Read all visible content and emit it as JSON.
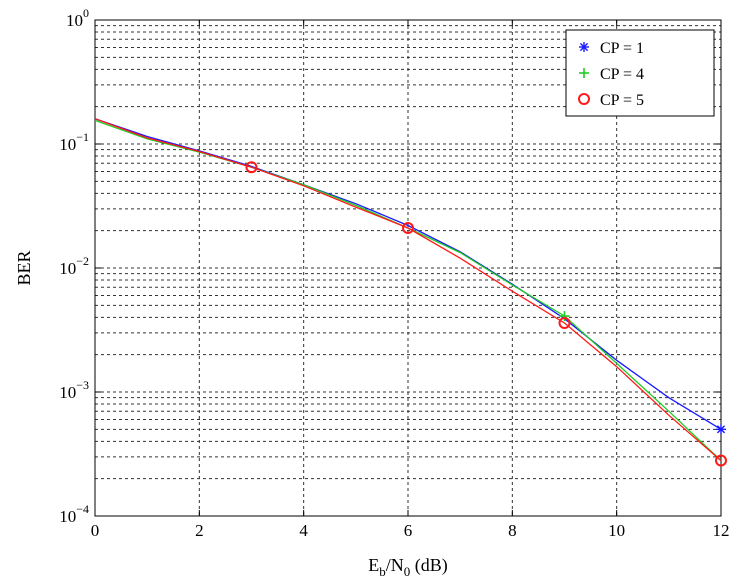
{
  "chart_data": {
    "type": "line",
    "title": "",
    "xlabel": {
      "main": "E",
      "sub1": "b",
      "mid": "/N",
      "sub2": "0",
      "tail": " (dB)"
    },
    "ylabel": "BER",
    "x_ticks": [
      0,
      2,
      4,
      6,
      8,
      10,
      12
    ],
    "y_ticks": [
      {
        "base": "10",
        "exp": "0",
        "value": 1
      },
      {
        "base": "10",
        "exp": "−1",
        "value": 0.1
      },
      {
        "base": "10",
        "exp": "−2",
        "value": 0.01
      },
      {
        "base": "10",
        "exp": "−3",
        "value": 0.001
      },
      {
        "base": "10",
        "exp": "−4",
        "value": 0.0001
      }
    ],
    "xlim": [
      0,
      12
    ],
    "ylim": [
      0.0001,
      1
    ],
    "y_scale": "log",
    "grid": true,
    "legend_position": "top-right",
    "series": [
      {
        "name": "CP = 1",
        "color": "#1a1aff",
        "marker": "star",
        "x": [
          0,
          1,
          2,
          3,
          4,
          5,
          6,
          7,
          8,
          9,
          10,
          11,
          12
        ],
        "y": [
          0.16,
          0.115,
          0.088,
          0.066,
          0.047,
          0.033,
          0.022,
          0.0135,
          0.0074,
          0.0039,
          0.0018,
          0.0009,
          0.0005
        ],
        "marker_x": [
          12
        ],
        "marker_y": [
          0.0005
        ]
      },
      {
        "name": "CP = 4",
        "color": "#22cc22",
        "marker": "plus",
        "x": [
          0,
          1,
          2,
          3,
          4,
          5,
          6,
          7,
          8,
          9,
          10,
          11,
          12
        ],
        "y": [
          0.155,
          0.11,
          0.086,
          0.065,
          0.047,
          0.032,
          0.021,
          0.0133,
          0.0073,
          0.0041,
          0.0017,
          0.0007,
          0.00028
        ],
        "marker_x": [
          9
        ],
        "marker_y": [
          0.0041
        ]
      },
      {
        "name": "CP = 5",
        "color": "#ff1a1a",
        "marker": "circle",
        "x": [
          0,
          1,
          2,
          3,
          4,
          5,
          6,
          7,
          8,
          9,
          10,
          11,
          12
        ],
        "y": [
          0.16,
          0.112,
          0.087,
          0.065,
          0.046,
          0.031,
          0.021,
          0.012,
          0.0065,
          0.0036,
          0.0016,
          0.00065,
          0.00028
        ],
        "marker_x": [
          3,
          6,
          9,
          12
        ],
        "marker_y": [
          0.065,
          0.021,
          0.0036,
          0.00028
        ]
      }
    ]
  }
}
